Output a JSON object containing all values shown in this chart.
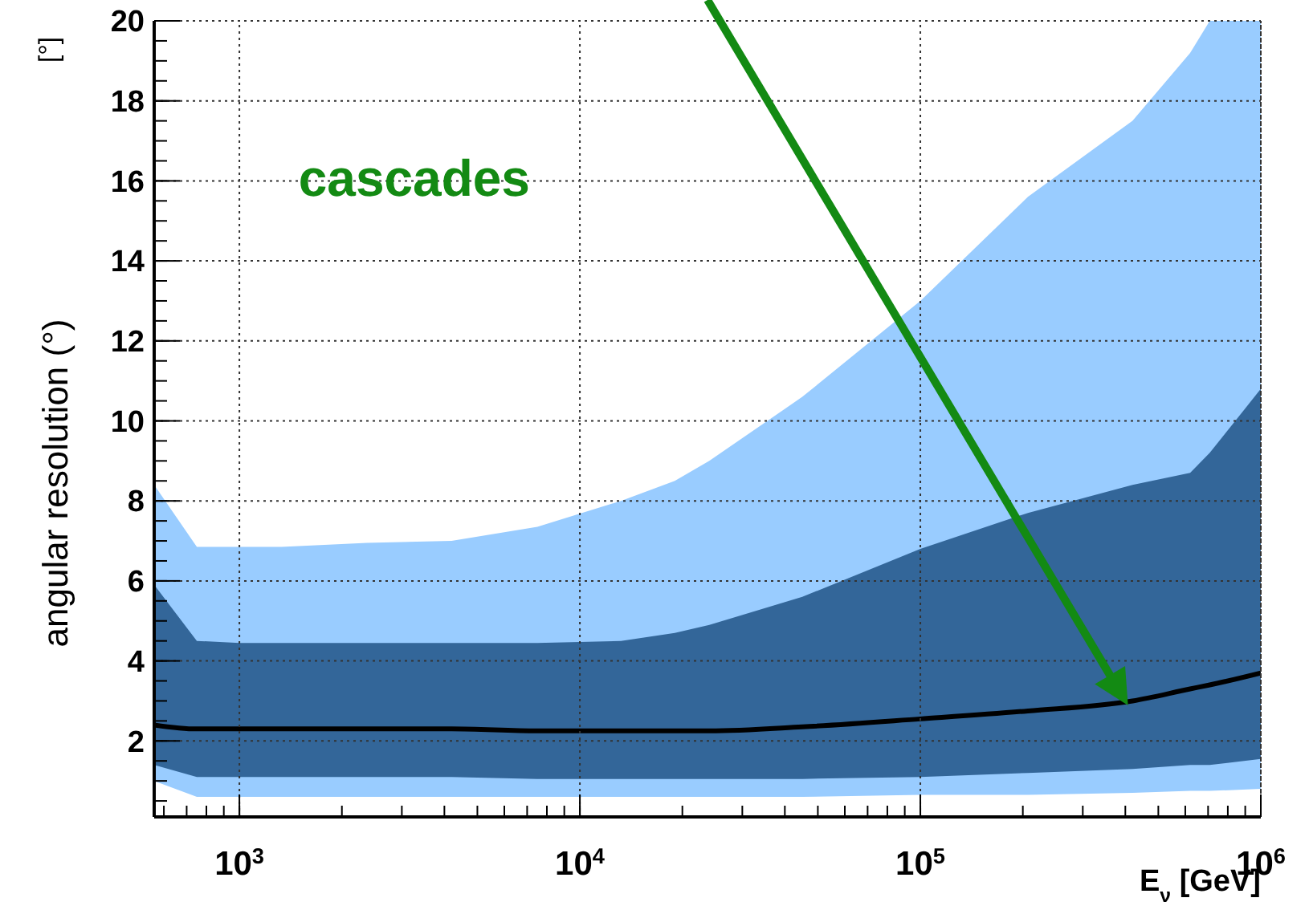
{
  "chart_data": {
    "type": "line",
    "ylabel": "angular resolution (°)",
    "xlabel": "E$_{ν}$ [GeV]",
    "annotations": [
      "[°]",
      "cascades"
    ],
    "log": "x",
    "grid": true,
    "xlim": [
      562,
      1000000
    ],
    "ylim": [
      0.1,
      20
    ],
    "xticks": [
      {
        "value": 1000,
        "label": "10$^{3}$"
      },
      {
        "value": 10000,
        "label": "10$^{4}$"
      },
      {
        "value": 100000,
        "label": "10$^{5}$"
      },
      {
        "value": 1000000,
        "label": "10$^{6}$"
      }
    ],
    "yticks": [
      2,
      4,
      6,
      8,
      10,
      12,
      14,
      16,
      18,
      20
    ],
    "x": [
      562,
      750,
      1000,
      1330,
      2370,
      4200,
      7500,
      13200,
      19000,
      24000,
      45000,
      100000,
      207000,
      420000,
      620000,
      708000,
      1000000
    ],
    "series": [
      {
        "color": "#99ccff",
        "values": [
          null,
          null,
          null,
          null,
          null,
          null,
          null,
          null,
          null,
          null,
          null,
          null,
          null,
          null,
          null,
          null,
          null
        ],
        "lower": [
          1.0,
          0.6,
          0.6,
          0.6,
          0.6,
          0.6,
          0.6,
          0.6,
          0.6,
          0.6,
          0.6,
          0.65,
          0.65,
          0.7,
          0.75,
          0.75,
          0.8
        ],
        "upper": [
          8.4,
          6.85,
          6.85,
          6.85,
          6.95,
          7.0,
          7.35,
          8.0,
          8.5,
          9.0,
          10.6,
          13.0,
          15.6,
          17.5,
          19.2,
          20,
          20
        ]
      },
      {
        "color": "#336699",
        "values": [
          null,
          null,
          null,
          null,
          null,
          null,
          null,
          null,
          null,
          null,
          null,
          null,
          null,
          null,
          null,
          null,
          null
        ],
        "lower": [
          1.4,
          1.1,
          1.1,
          1.1,
          1.1,
          1.1,
          1.05,
          1.05,
          1.05,
          1.05,
          1.05,
          1.1,
          1.2,
          1.3,
          1.4,
          1.4,
          1.55
        ],
        "upper": [
          5.9,
          4.5,
          4.45,
          4.45,
          4.45,
          4.45,
          4.45,
          4.5,
          4.7,
          4.9,
          5.6,
          6.8,
          7.7,
          8.4,
          8.7,
          9.2,
          10.8
        ]
      },
      {
        "color": "#000000",
        "values": [
          2.4,
          2.3,
          2.3,
          2.3,
          2.3,
          2.3,
          2.25,
          2.25,
          2.25,
          2.25,
          2.35,
          2.55,
          2.75,
          3.0,
          3.3,
          3.4,
          3.7
        ]
      }
    ]
  }
}
